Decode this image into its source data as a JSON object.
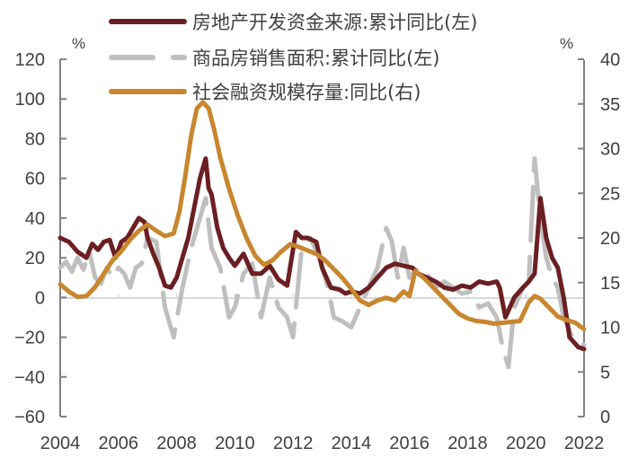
{
  "chart_data": {
    "type": "line",
    "title": "",
    "x_range": [
      2004,
      2022
    ],
    "x_ticks": [
      "2004",
      "2006",
      "2008",
      "2010",
      "2012",
      "2014",
      "2016",
      "2018",
      "2020",
      "2022"
    ],
    "left_axis": {
      "unit": "%",
      "ylim": [
        -60,
        120
      ],
      "ticks": [
        120,
        100,
        80,
        60,
        40,
        20,
        0,
        -20,
        -40,
        -60
      ]
    },
    "right_axis": {
      "unit": "%",
      "ylim": [
        0,
        40
      ],
      "ticks": [
        40,
        35,
        30,
        25,
        20,
        15,
        10,
        5,
        0
      ]
    },
    "legend_position": "top",
    "grid": false,
    "series": [
      {
        "name": "房地产开发资金来源:累计同比(左)",
        "axis": "left",
        "color": "#6B1F22",
        "style": "solid",
        "x": [
          2004.0,
          2004.3,
          2004.6,
          2004.9,
          2005.1,
          2005.3,
          2005.5,
          2005.7,
          2005.9,
          2006.1,
          2006.3,
          2006.5,
          2006.7,
          2006.9,
          2007.0,
          2007.2,
          2007.4,
          2007.6,
          2007.8,
          2008.0,
          2008.2,
          2008.4,
          2008.6,
          2008.8,
          2009.0,
          2009.1,
          2009.2,
          2009.4,
          2009.6,
          2009.8,
          2010.0,
          2010.3,
          2010.6,
          2010.9,
          2011.2,
          2011.5,
          2011.8,
          2012.1,
          2012.3,
          2012.5,
          2012.8,
          2013.0,
          2013.3,
          2013.6,
          2013.8,
          2014.0,
          2014.3,
          2014.6,
          2014.9,
          2015.2,
          2015.5,
          2015.8,
          2016.1,
          2016.3,
          2016.6,
          2016.9,
          2017.2,
          2017.5,
          2017.8,
          2018.1,
          2018.4,
          2018.7,
          2019.0,
          2019.1,
          2019.3,
          2019.6,
          2019.9,
          2020.1,
          2020.2,
          2020.3,
          2020.5,
          2020.7,
          2020.9,
          2021.1,
          2021.3,
          2021.5,
          2021.8,
          2022.0
        ],
        "values": [
          30,
          28,
          23,
          20,
          27,
          24,
          28,
          29,
          20,
          28,
          30,
          35,
          40,
          38,
          30,
          22,
          15,
          6,
          5,
          10,
          20,
          30,
          45,
          60,
          70,
          55,
          52,
          35,
          25,
          20,
          16,
          22,
          12,
          12,
          16,
          9,
          6,
          33,
          30,
          30,
          28,
          15,
          5,
          4,
          2,
          3,
          2,
          5,
          10,
          15,
          17,
          16,
          15,
          12,
          10,
          8,
          5,
          4,
          6,
          5,
          8,
          7,
          8,
          5,
          -10,
          0,
          5,
          8,
          10,
          12,
          50,
          30,
          20,
          15,
          0,
          -20,
          -25,
          -26
        ]
      },
      {
        "name": "商品房销售面积:累计同比(左)",
        "axis": "left",
        "color": "#BFBFBF",
        "style": "dashed",
        "x": [
          2004.0,
          2004.2,
          2004.4,
          2004.6,
          2004.8,
          2005.0,
          2005.2,
          2005.4,
          2005.6,
          2005.8,
          2006.0,
          2006.2,
          2006.4,
          2006.6,
          2006.8,
          2007.0,
          2007.3,
          2007.6,
          2007.9,
          2008.2,
          2008.5,
          2008.8,
          2009.0,
          2009.2,
          2009.5,
          2009.8,
          2010.0,
          2010.3,
          2010.6,
          2010.9,
          2011.2,
          2011.5,
          2011.8,
          2012.0,
          2012.3,
          2012.6,
          2012.9,
          2013.2,
          2013.4,
          2013.7,
          2014.0,
          2014.3,
          2014.6,
          2014.9,
          2015.2,
          2015.4,
          2015.6,
          2015.8,
          2016.0,
          2016.3,
          2016.6,
          2016.9,
          2017.2,
          2017.5,
          2017.8,
          2018.1,
          2018.4,
          2018.7,
          2019.0,
          2019.2,
          2019.4,
          2019.6,
          2019.9,
          2020.1,
          2020.3,
          2020.5,
          2020.7,
          2020.9,
          2021.1,
          2021.3,
          2021.6,
          2021.9,
          2022.0
        ],
        "values": [
          15,
          18,
          13,
          20,
          14,
          23,
          10,
          7,
          15,
          10,
          15,
          12,
          5,
          15,
          17,
          30,
          28,
          -5,
          -20,
          5,
          25,
          40,
          50,
          25,
          15,
          -10,
          -5,
          12,
          17,
          -10,
          10,
          -5,
          -10,
          -20,
          25,
          30,
          20,
          5,
          -10,
          -12,
          -15,
          -5,
          5,
          15,
          35,
          28,
          10,
          25,
          10,
          15,
          12,
          5,
          8,
          5,
          2,
          3,
          -5,
          -3,
          -10,
          -25,
          -35,
          -5,
          5,
          8,
          70,
          40,
          20,
          10,
          5,
          -10,
          -20,
          -22,
          -24
        ]
      },
      {
        "name": "社会融资规模存量:同比(右)",
        "axis": "right",
        "color": "#C8862E",
        "style": "solid",
        "x": [
          2004.0,
          2004.3,
          2004.6,
          2004.9,
          2005.2,
          2005.5,
          2005.8,
          2006.1,
          2006.4,
          2006.7,
          2007.0,
          2007.3,
          2007.6,
          2007.9,
          2008.1,
          2008.3,
          2008.5,
          2008.7,
          2008.9,
          2009.1,
          2009.3,
          2009.5,
          2009.8,
          2010.1,
          2010.4,
          2010.7,
          2011.0,
          2011.3,
          2011.6,
          2011.9,
          2012.2,
          2012.5,
          2012.8,
          2013.1,
          2013.4,
          2013.7,
          2014.0,
          2014.3,
          2014.6,
          2014.9,
          2015.2,
          2015.5,
          2015.8,
          2016.0,
          2016.2,
          2016.5,
          2016.8,
          2017.1,
          2017.4,
          2017.7,
          2018.0,
          2018.3,
          2018.6,
          2018.9,
          2019.2,
          2019.5,
          2019.8,
          2020.1,
          2020.3,
          2020.5,
          2020.8,
          2021.1,
          2021.4,
          2021.7,
          2022.0
        ],
        "values": [
          14.8,
          14.0,
          13.4,
          13.5,
          14.5,
          16.0,
          17.5,
          18.5,
          19.8,
          20.8,
          21.5,
          20.8,
          20.2,
          20.5,
          23.0,
          27.0,
          31.5,
          34.5,
          35.2,
          34.5,
          32.0,
          29.0,
          25.5,
          22.5,
          20.0,
          18.0,
          17.0,
          17.5,
          18.5,
          19.3,
          19.0,
          18.6,
          18.2,
          17.5,
          16.5,
          15.5,
          14.3,
          13.0,
          12.5,
          13.0,
          13.3,
          13.0,
          14.0,
          13.5,
          16.3,
          15.5,
          14.5,
          13.5,
          12.5,
          11.5,
          11.0,
          10.7,
          10.6,
          10.4,
          10.5,
          10.6,
          10.7,
          12.8,
          13.5,
          13.2,
          12.2,
          11.2,
          10.8,
          10.5,
          9.8
        ]
      }
    ]
  },
  "legend": {
    "items": [
      {
        "label": "房地产开发资金来源:累计同比(左)",
        "color": "#6B1F22",
        "style": "solid"
      },
      {
        "label": "商品房销售面积:累计同比(左)",
        "color": "#BFBFBF",
        "style": "dashed"
      },
      {
        "label": "社会融资规模存量:同比(右)",
        "color": "#C8862E",
        "style": "solid"
      }
    ]
  },
  "axes": {
    "left_unit": "%",
    "right_unit": "%"
  }
}
